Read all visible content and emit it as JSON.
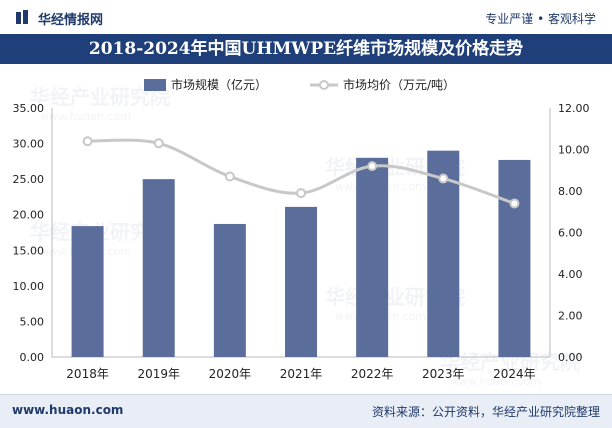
{
  "header": {
    "brand": "华经情报网",
    "slogan": "专业严谨 • 客观科学"
  },
  "title": "2018-2024年中国UHMWPE纤维市场规模及价格走势",
  "legend": {
    "bar_label": "市场规模（亿元）",
    "line_label": "市场均价（万元/吨）"
  },
  "watermark": {
    "cn": "华经产业研究院",
    "url": "www.huaon.com"
  },
  "footer": {
    "site": "www.huaon.com",
    "source": "资料来源：公开资料，华经产业研究院整理"
  },
  "colors": {
    "bar": "#5b6e9b",
    "line": "#c8c8c8",
    "title_bg": "#1f3f7a"
  },
  "chart_data": {
    "type": "bar",
    "categories": [
      "2018年",
      "2019年",
      "2020年",
      "2021年",
      "2022年",
      "2023年",
      "2024年"
    ],
    "series": [
      {
        "name": "市场规模（亿元）",
        "type": "bar",
        "axis": "left",
        "values": [
          18.4,
          25.0,
          18.7,
          21.1,
          28.0,
          29.0,
          27.7
        ]
      },
      {
        "name": "市场均价（万元/吨）",
        "type": "line",
        "axis": "right",
        "values": [
          10.4,
          10.3,
          8.7,
          7.9,
          9.2,
          8.6,
          7.4
        ]
      }
    ],
    "y_left": {
      "min": 0,
      "max": 35,
      "step": 5,
      "tick_labels": [
        "0.00",
        "5.00",
        "10.00",
        "15.00",
        "20.00",
        "25.00",
        "30.00",
        "35.00"
      ]
    },
    "y_right": {
      "min": 0,
      "max": 12,
      "step": 2,
      "tick_labels": [
        "0.00",
        "2.00",
        "4.00",
        "6.00",
        "8.00",
        "10.00",
        "12.00"
      ]
    },
    "legend_position": "top-center",
    "grid": false
  }
}
